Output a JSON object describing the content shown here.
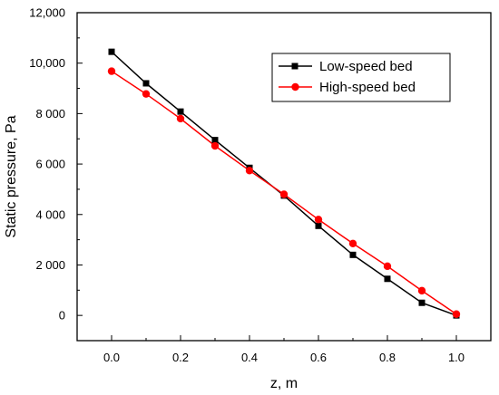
{
  "chart_data": {
    "type": "line",
    "title": "",
    "xlabel": "z, m",
    "ylabel": "Static pressure, Pa",
    "xlim": [
      -0.1,
      1.1
    ],
    "ylim": [
      -1000,
      12000
    ],
    "x_ticks": [
      0.0,
      0.2,
      0.4,
      0.6,
      0.8,
      1.0
    ],
    "x_tick_labels": [
      "0.0",
      "0.2",
      "0.4",
      "0.6",
      "0.8",
      "1.0"
    ],
    "y_ticks": [
      0,
      2000,
      4000,
      6000,
      8000,
      10000,
      12000
    ],
    "y_tick_labels": [
      "0",
      "2 000",
      "4 000",
      "6 000",
      "8 000",
      "10,000",
      "12,000"
    ],
    "grid": false,
    "legend_position": "top-right",
    "x": [
      0.0,
      0.1,
      0.2,
      0.3,
      0.4,
      0.5,
      0.6,
      0.7,
      0.8,
      0.9,
      1.0
    ],
    "series": [
      {
        "name": "Low-speed bed",
        "marker": "square",
        "color": "#000000",
        "values": [
          10450,
          9200,
          8080,
          6950,
          5850,
          4750,
          3550,
          2400,
          1450,
          500,
          0
        ]
      },
      {
        "name": "High-speed bed",
        "marker": "circle",
        "color": "#ff0000",
        "values": [
          9680,
          8780,
          7800,
          6720,
          5740,
          4800,
          3800,
          2850,
          1950,
          980,
          50
        ]
      }
    ]
  }
}
